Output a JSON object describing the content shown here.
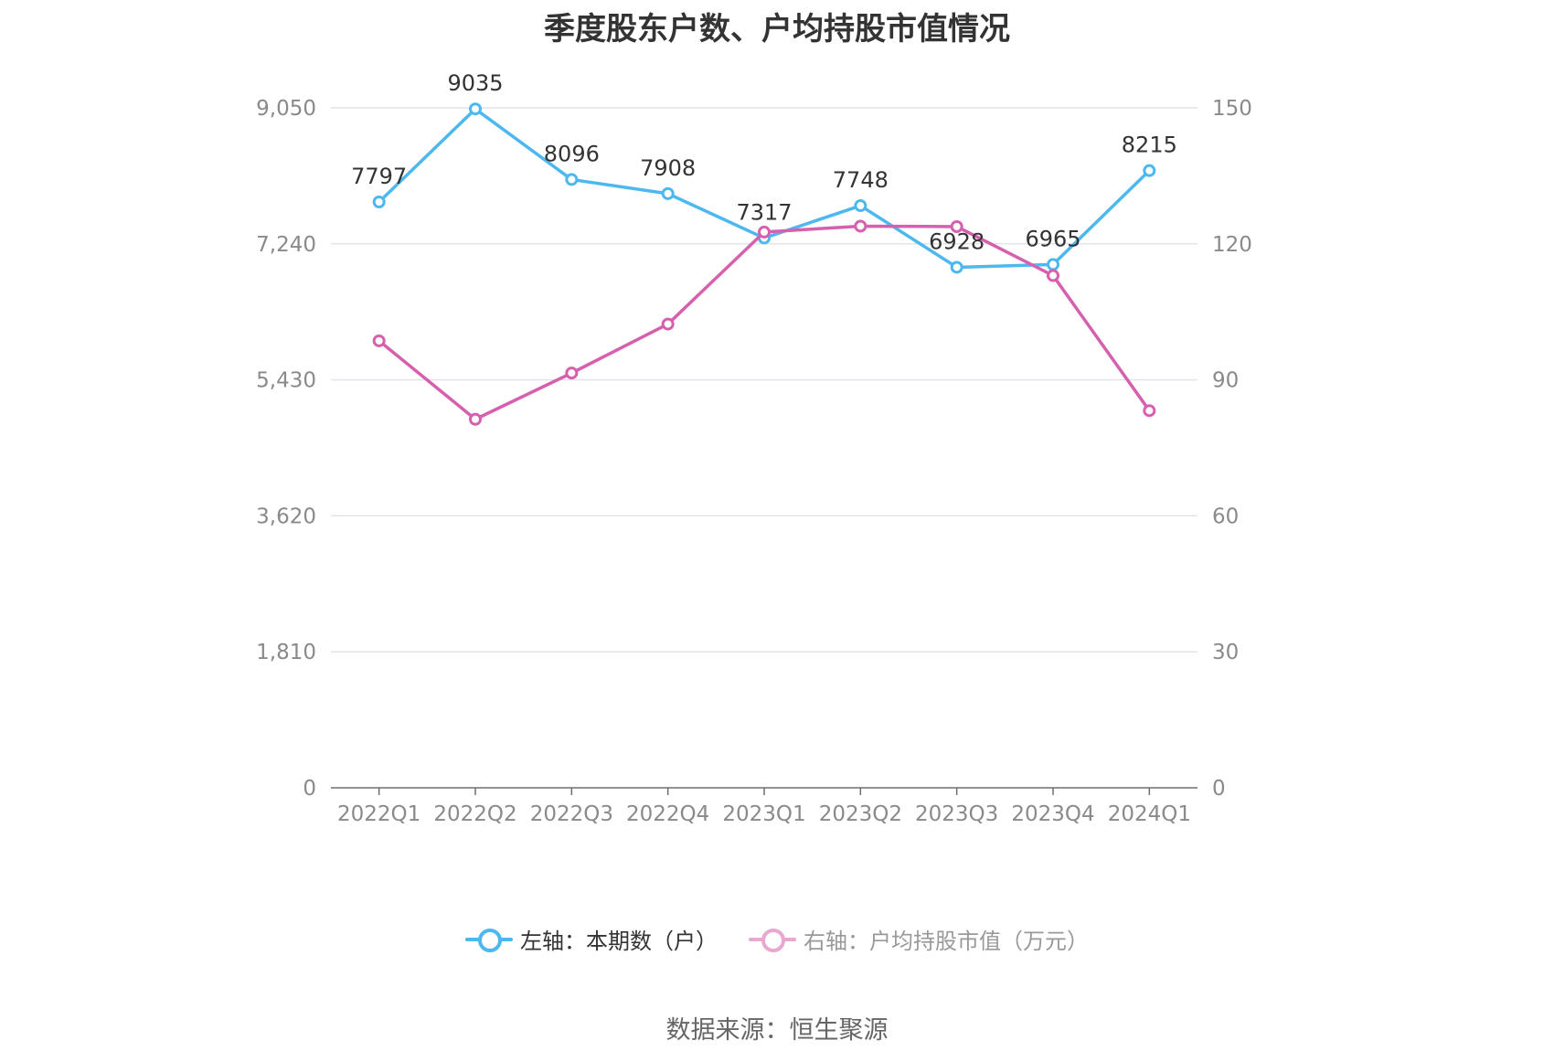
{
  "title": "季度股东户数、户均持股市值情况",
  "source": "数据来源：恒生聚源",
  "legend": {
    "left_label": "左轴：本期数（户）",
    "right_label": "右轴：户均持股市值（万元）"
  },
  "colors": {
    "left_series": "#4db8f0",
    "right_series": "#d660ad",
    "grid": "#e1e4ea",
    "axis": "#6e6e6e"
  },
  "chart_data": {
    "type": "line",
    "categories": [
      "2022Q1",
      "2022Q2",
      "2022Q3",
      "2022Q4",
      "2023Q1",
      "2023Q2",
      "2023Q3",
      "2023Q4",
      "2024Q1"
    ],
    "series": [
      {
        "name": "左轴：本期数（户）",
        "axis": "left",
        "values": [
          7797,
          9035,
          8096,
          7908,
          7317,
          7748,
          6928,
          6965,
          8215
        ],
        "data_labels": [
          "7797",
          "9035",
          "8096",
          "7908",
          "7317",
          "7748",
          "6928",
          "6965",
          "8215"
        ]
      },
      {
        "name": "右轴：户均持股市值（万元）",
        "axis": "right",
        "values": [
          98.6,
          81.3,
          91.5,
          102.3,
          122.6,
          123.9,
          123.8,
          113.0,
          83.2
        ]
      }
    ],
    "y_left": {
      "ylim": [
        0,
        9050
      ],
      "ticks": [
        "0",
        "1,810",
        "3,620",
        "5,430",
        "7,240",
        "9,050"
      ]
    },
    "y_right": {
      "ylim": [
        0,
        150
      ],
      "ticks": [
        "0",
        "30",
        "60",
        "90",
        "120",
        "150"
      ]
    },
    "grid": true,
    "legend_position": "bottom"
  }
}
